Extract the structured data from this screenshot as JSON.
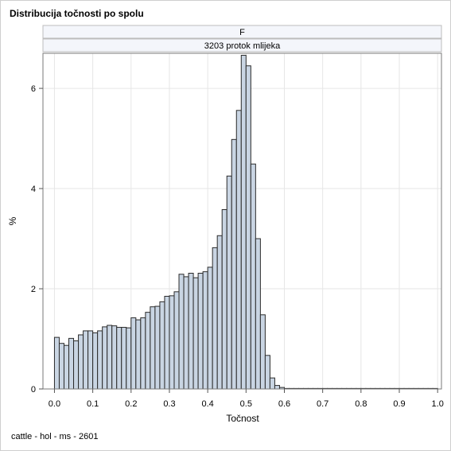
{
  "title": "Distribucija točnosti po spolu",
  "footnote": "cattle - hol - ms - 2601",
  "colors": {
    "bar_fill": "#c9d5e3",
    "bar_stroke": "#2b2b2b",
    "grid": "#e6e6e6",
    "header_fill": "#f4f6fb"
  },
  "chart_data": {
    "type": "bar",
    "panel_headers": [
      "F",
      "3203 protok mlijeka"
    ],
    "xlabel": "Točnost",
    "ylabel": "%",
    "xlim": [
      -0.03,
      1.01
    ],
    "ylim": [
      0,
      6.7
    ],
    "x_ticks": [
      "0.0",
      "0.1",
      "0.2",
      "0.3",
      "0.4",
      "0.5",
      "0.6",
      "0.7",
      "0.8",
      "0.9",
      "1.0"
    ],
    "y_ticks": [
      "0",
      "2",
      "4",
      "6"
    ],
    "grid": true,
    "bin_width": 0.0125,
    "bin_starts": [
      0.0,
      0.0125,
      0.025,
      0.0375,
      0.05,
      0.0625,
      0.075,
      0.0875,
      0.1,
      0.1125,
      0.125,
      0.1375,
      0.15,
      0.1625,
      0.175,
      0.1875,
      0.2,
      0.2125,
      0.225,
      0.2375,
      0.25,
      0.2625,
      0.275,
      0.2875,
      0.3,
      0.3125,
      0.325,
      0.3375,
      0.35,
      0.3625,
      0.375,
      0.3875,
      0.4,
      0.4125,
      0.425,
      0.4375,
      0.45,
      0.4625,
      0.475,
      0.4875,
      0.5,
      0.5125,
      0.525,
      0.5375,
      0.55,
      0.5625,
      0.575,
      0.5875,
      0.6,
      0.6125,
      0.625,
      0.6375,
      0.65,
      0.6625,
      0.675,
      0.6875,
      0.7,
      0.7125,
      0.725,
      0.7375,
      0.75,
      0.7625,
      0.775,
      0.7875,
      0.8,
      0.8125,
      0.825,
      0.8375,
      0.85,
      0.8625,
      0.875,
      0.8875,
      0.9,
      0.9125,
      0.925,
      0.9375,
      0.95,
      0.9625,
      0.975,
      0.9875
    ],
    "values": [
      1.03,
      0.91,
      0.87,
      1.01,
      0.96,
      1.08,
      1.16,
      1.16,
      1.12,
      1.16,
      1.24,
      1.27,
      1.26,
      1.23,
      1.23,
      1.22,
      1.42,
      1.38,
      1.42,
      1.53,
      1.64,
      1.65,
      1.74,
      1.85,
      1.86,
      1.94,
      2.29,
      2.24,
      2.31,
      2.22,
      2.31,
      2.34,
      2.43,
      2.82,
      3.06,
      3.58,
      4.25,
      4.98,
      5.56,
      6.66,
      6.45,
      4.49,
      3.0,
      1.48,
      0.67,
      0.22,
      0.07,
      0.03,
      0.01,
      0.01,
      0.01,
      0.01,
      0.01,
      0.01,
      0.01,
      0.01,
      0.01,
      0.01,
      0.01,
      0.01,
      0.01,
      0.01,
      0.01,
      0.01,
      0.01,
      0.01,
      0.01,
      0.01,
      0.01,
      0.01,
      0.01,
      0.01,
      0.01,
      0.01,
      0.01,
      0.01,
      0.01,
      0.01,
      0.01,
      0.01
    ]
  }
}
